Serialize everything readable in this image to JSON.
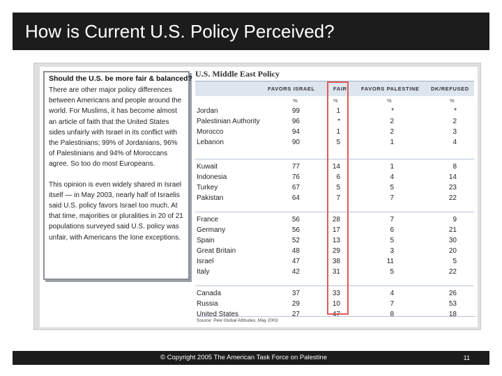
{
  "title": "How is Current U.S. Policy Perceived?",
  "sidebar": {
    "heading": "Should the U.S. be more fair & balanced?",
    "para1": "There are other major policy differences between Americans and people around the world. For Muslims, it has become almost an article of faith that the United States sides unfairly with Israel in its conflict with the Palestinians; 99% of Jordanians, 96% of Palestinians and 94% of Moroccans agree. So too do most Europeans.",
    "para2": "This opinion is even widely shared in Israel itself — in May 2003, nearly half of Israelis said U.S. policy favors Israel too much. At that time, majorities or pluralities in 20 of 21 populations surveyed said U.S. policy was unfair, with Americans the lone exceptions."
  },
  "table": {
    "title": "U.S. Middle East Policy",
    "headers": [
      "FAVORS ISRAEL",
      "FAIR",
      "FAVORS PALESTINE",
      "DK/REFUSED"
    ],
    "pct": [
      "%",
      "%",
      "%",
      "%"
    ],
    "groups": [
      [
        {
          "country": "Jordan",
          "v": [
            "99",
            "1",
            "*",
            "*"
          ]
        },
        {
          "country": "Palestinian Authority",
          "v": [
            "96",
            "*",
            "2",
            "2"
          ]
        },
        {
          "country": "Morocco",
          "v": [
            "94",
            "1",
            "2",
            "3"
          ]
        },
        {
          "country": "Lebanon",
          "v": [
            "90",
            "5",
            "1",
            "4"
          ]
        }
      ],
      [
        {
          "country": "Kuwait",
          "v": [
            "77",
            "14",
            "1",
            "8"
          ]
        },
        {
          "country": "Indonesia",
          "v": [
            "76",
            "6",
            "4",
            "14"
          ]
        },
        {
          "country": "Turkey",
          "v": [
            "67",
            "5",
            "5",
            "23"
          ]
        },
        {
          "country": "Pakistan",
          "v": [
            "64",
            "7",
            "7",
            "22"
          ]
        }
      ],
      [
        {
          "country": "France",
          "v": [
            "56",
            "28",
            "7",
            "9"
          ]
        },
        {
          "country": "Germany",
          "v": [
            "56",
            "17",
            "6",
            "21"
          ]
        },
        {
          "country": "Spain",
          "v": [
            "52",
            "13",
            "5",
            "30"
          ]
        },
        {
          "country": "Great Britain",
          "v": [
            "48",
            "29",
            "3",
            "20"
          ]
        },
        {
          "country": "Israel",
          "v": [
            "47",
            "38",
            "11",
            "5"
          ]
        },
        {
          "country": "Italy",
          "v": [
            "42",
            "31",
            "5",
            "22"
          ]
        }
      ],
      [
        {
          "country": "Canada",
          "v": [
            "37",
            "33",
            "4",
            "26"
          ]
        },
        {
          "country": "Russia",
          "v": [
            "29",
            "10",
            "7",
            "53"
          ]
        },
        {
          "country": "United States",
          "v": [
            "27",
            "47",
            "8",
            "18"
          ]
        }
      ]
    ],
    "source": "Source: Pew Global Attitudes, May 2003",
    "highlight_color": "#e05a5a"
  },
  "footer": {
    "copyright": "© Copyright 2005 The American Task Force on Palestine",
    "page": "11"
  }
}
